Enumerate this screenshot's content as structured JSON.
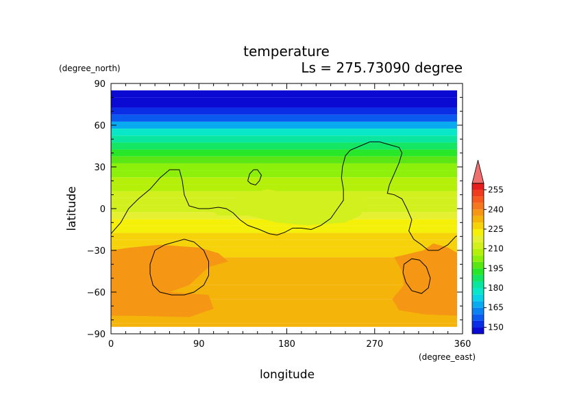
{
  "chart_data": {
    "type": "heatmap",
    "title": "temperature",
    "subtitle": "Ls = 275.73090 degree",
    "xlabel": "longitude",
    "ylabel": "latitude",
    "x_unit": "(degree_east)",
    "y_unit": "(degree_north)",
    "xlim": [
      0,
      360
    ],
    "ylim": [
      -90,
      90
    ],
    "x_ticks": [
      "0",
      "90",
      "180",
      "270",
      "360"
    ],
    "y_ticks": [
      "90",
      "60",
      "30",
      "0",
      "−30",
      "−60",
      "−90"
    ],
    "colorbar": {
      "levels": [
        145,
        150,
        155,
        160,
        165,
        170,
        175,
        180,
        185,
        190,
        195,
        200,
        205,
        210,
        215,
        220,
        225,
        230,
        235,
        240,
        245,
        250,
        255,
        260
      ],
      "labels": [
        "150",
        "165",
        "180",
        "195",
        "210",
        "225",
        "240",
        "255"
      ],
      "label_values": [
        150,
        165,
        180,
        195,
        210,
        225,
        240,
        255
      ],
      "colors": [
        "#0a0ad2",
        "#0a2ee6",
        "#0a5af0",
        "#0a82f0",
        "#0aaaf0",
        "#0ad2e6",
        "#0ae6c8",
        "#0ae6a0",
        "#14e664",
        "#28e628",
        "#5ae614",
        "#8cf00a",
        "#b4f00a",
        "#d2f01e",
        "#e6f032",
        "#f5f00a",
        "#f5d20a",
        "#f5b40a",
        "#f59614",
        "#f5781e",
        "#f55a1e",
        "#f03c1e",
        "#e61e1e"
      ],
      "overflow_color": "#f07070"
    },
    "latitude_profile": [
      {
        "lat": 85,
        "value": 148
      },
      {
        "lat": 75,
        "value": 148
      },
      {
        "lat": 70,
        "value": 151
      },
      {
        "lat": 65,
        "value": 157
      },
      {
        "lat": 60,
        "value": 168
      },
      {
        "lat": 55,
        "value": 176
      },
      {
        "lat": 50,
        "value": 180
      },
      {
        "lat": 45,
        "value": 186
      },
      {
        "lat": 40,
        "value": 192
      },
      {
        "lat": 35,
        "value": 197
      },
      {
        "lat": 30,
        "value": 201
      },
      {
        "lat": 25,
        "value": 204
      },
      {
        "lat": 20,
        "value": 207
      },
      {
        "lat": 15,
        "value": 209
      },
      {
        "lat": 10,
        "value": 212
      },
      {
        "lat": 5,
        "value": 214
      },
      {
        "lat": 0,
        "value": 214
      },
      {
        "lat": -5,
        "value": 218
      },
      {
        "lat": -10,
        "value": 221
      },
      {
        "lat": -15,
        "value": 223
      },
      {
        "lat": -20,
        "value": 226
      },
      {
        "lat": -25,
        "value": 228
      },
      {
        "lat": -30,
        "value": 229
      },
      {
        "lat": -40,
        "value": 231
      },
      {
        "lat": -50,
        "value": 232
      },
      {
        "lat": -60,
        "value": 232
      },
      {
        "lat": -70,
        "value": 232
      },
      {
        "lat": -80,
        "value": 231
      },
      {
        "lat": -85,
        "value": 231
      }
    ],
    "regions": [
      {
        "name": "warm-southwest",
        "value": 236,
        "points": [
          [
            0,
            -30
          ],
          [
            20,
            -28
          ],
          [
            50,
            -26
          ],
          [
            90,
            -28
          ],
          [
            110,
            -32
          ],
          [
            120,
            -38
          ],
          [
            100,
            -42
          ],
          [
            80,
            -55
          ],
          [
            60,
            -60
          ],
          [
            100,
            -62
          ],
          [
            105,
            -72
          ],
          [
            80,
            -78
          ],
          [
            20,
            -77
          ],
          [
            0,
            -77
          ]
        ]
      },
      {
        "name": "warm-southeast",
        "value": 236,
        "points": [
          [
            290,
            -35
          ],
          [
            320,
            -30
          ],
          [
            330,
            -25
          ],
          [
            345,
            -28
          ],
          [
            355,
            -32
          ],
          [
            355,
            -77
          ],
          [
            320,
            -76
          ],
          [
            295,
            -73
          ],
          [
            288,
            -65
          ],
          [
            300,
            -55
          ],
          [
            298,
            -45
          ]
        ]
      },
      {
        "name": "green-patch-center",
        "value": 212,
        "points": [
          [
            100,
            0
          ],
          [
            130,
            8
          ],
          [
            160,
            14
          ],
          [
            190,
            10
          ],
          [
            220,
            10
          ],
          [
            245,
            8
          ],
          [
            255,
            12
          ],
          [
            265,
            5
          ],
          [
            255,
            -5
          ],
          [
            240,
            -10
          ],
          [
            200,
            -12
          ],
          [
            170,
            -10
          ],
          [
            140,
            -5
          ],
          [
            110,
            -5
          ]
        ]
      }
    ],
    "contours": [
      [
        [
          0,
          -18
        ],
        [
          10,
          -10
        ],
        [
          18,
          0
        ],
        [
          28,
          7
        ],
        [
          40,
          14
        ],
        [
          50,
          22
        ],
        [
          60,
          28
        ],
        [
          70,
          28
        ],
        [
          73,
          20
        ],
        [
          75,
          10
        ],
        [
          80,
          2
        ],
        [
          90,
          0
        ],
        [
          100,
          0
        ],
        [
          110,
          1
        ],
        [
          118,
          0
        ],
        [
          125,
          -3
        ],
        [
          132,
          -8
        ],
        [
          140,
          -12
        ],
        [
          152,
          -15
        ],
        [
          162,
          -18
        ],
        [
          170,
          -19
        ],
        [
          178,
          -17
        ],
        [
          186,
          -14
        ],
        [
          195,
          -14
        ],
        [
          205,
          -15
        ],
        [
          215,
          -12
        ],
        [
          225,
          -7
        ],
        [
          232,
          0
        ],
        [
          238,
          6
        ],
        [
          238,
          14
        ],
        [
          236,
          22
        ],
        [
          237,
          30
        ],
        [
          240,
          38
        ],
        [
          245,
          42
        ],
        [
          255,
          45
        ],
        [
          265,
          48
        ],
        [
          275,
          48
        ],
        [
          285,
          46
        ],
        [
          295,
          44
        ],
        [
          298,
          40
        ],
        [
          295,
          33
        ],
        [
          290,
          25
        ],
        [
          285,
          17
        ],
        [
          283,
          11
        ],
        [
          290,
          10
        ],
        [
          298,
          7
        ],
        [
          303,
          0
        ],
        [
          308,
          -8
        ],
        [
          305,
          -16
        ],
        [
          310,
          -22
        ],
        [
          318,
          -26
        ],
        [
          325,
          -30
        ],
        [
          335,
          -30
        ],
        [
          345,
          -26
        ],
        [
          353,
          -20
        ],
        [
          360,
          -18
        ]
      ],
      [
        [
          140,
          20
        ],
        [
          142,
          25
        ],
        [
          146,
          28
        ],
        [
          150,
          28
        ],
        [
          154,
          24
        ],
        [
          152,
          20
        ],
        [
          148,
          17
        ],
        [
          143,
          18
        ],
        [
          140,
          20
        ]
      ],
      [
        [
          45,
          -30
        ],
        [
          55,
          -26
        ],
        [
          65,
          -24
        ],
        [
          75,
          -22
        ],
        [
          85,
          -24
        ],
        [
          95,
          -30
        ],
        [
          100,
          -38
        ],
        [
          100,
          -48
        ],
        [
          95,
          -55
        ],
        [
          85,
          -60
        ],
        [
          75,
          -62
        ],
        [
          62,
          -62
        ],
        [
          50,
          -60
        ],
        [
          43,
          -55
        ],
        [
          40,
          -47
        ],
        [
          40,
          -40
        ],
        [
          45,
          -30
        ]
      ],
      [
        [
          300,
          -40
        ],
        [
          308,
          -36
        ],
        [
          316,
          -37
        ],
        [
          323,
          -42
        ],
        [
          327,
          -50
        ],
        [
          325,
          -57
        ],
        [
          318,
          -61
        ],
        [
          308,
          -59
        ],
        [
          302,
          -53
        ],
        [
          299,
          -46
        ],
        [
          300,
          -40
        ]
      ]
    ]
  }
}
